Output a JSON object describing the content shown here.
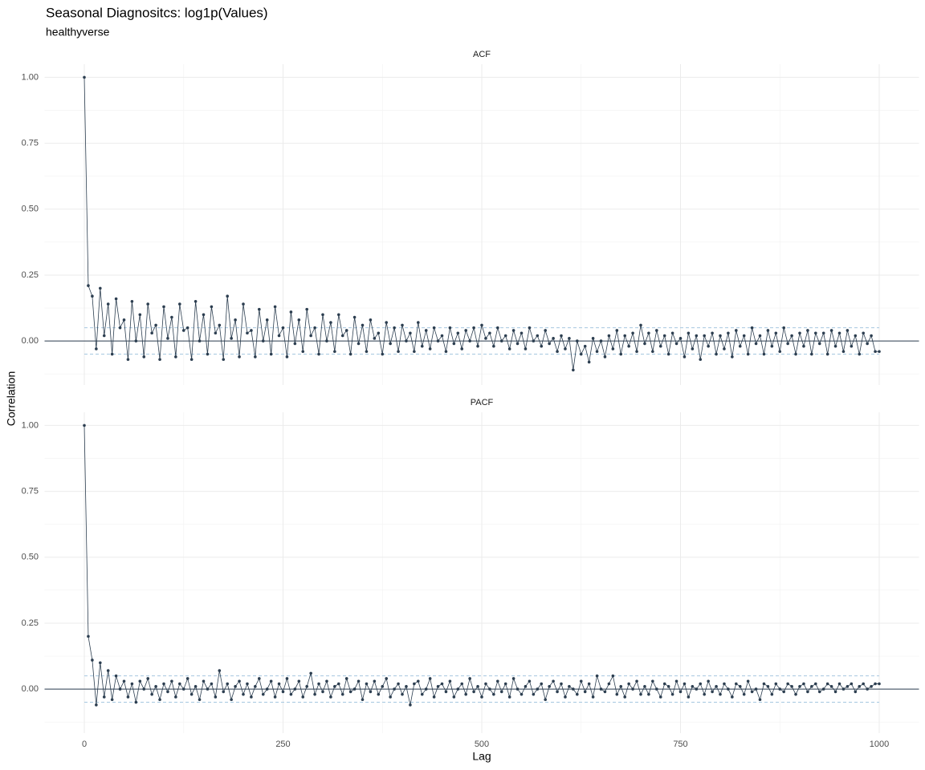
{
  "header": {
    "title": "Seasonal Diagnositcs: log1p(Values)",
    "subtitle": "healthyverse",
    "x_label": "Lag",
    "y_label": "Correlation"
  },
  "chart_data": [
    {
      "type": "line",
      "title": "ACF",
      "color": "#2c3e50",
      "band_color": "#a6c8e0",
      "confidence_band": [
        -0.05,
        0.05
      ],
      "xlim": [
        -50,
        1050
      ],
      "ylim": [
        -0.167,
        1.05
      ],
      "xticks": [
        0,
        250,
        500,
        750,
        1000
      ],
      "minor_xticks": [
        125,
        375,
        625,
        875
      ],
      "yticks": [
        {
          "value": 0,
          "label": "0.00"
        },
        {
          "value": 0.25,
          "label": "0.25"
        },
        {
          "value": 0.5,
          "label": "0.50"
        },
        {
          "value": 0.75,
          "label": "0.75"
        },
        {
          "value": 1,
          "label": "1.00"
        }
      ],
      "minor_yticks": [
        -0.125,
        0.125,
        0.375,
        0.625,
        0.875
      ],
      "x": [
        0,
        5,
        10,
        15,
        20,
        25,
        30,
        35,
        40,
        45,
        50,
        55,
        60,
        65,
        70,
        75,
        80,
        85,
        90,
        95,
        100,
        105,
        110,
        115,
        120,
        125,
        130,
        135,
        140,
        145,
        150,
        155,
        160,
        165,
        170,
        175,
        180,
        185,
        190,
        195,
        200,
        205,
        210,
        215,
        220,
        225,
        230,
        235,
        240,
        245,
        250,
        255,
        260,
        265,
        270,
        275,
        280,
        285,
        290,
        295,
        300,
        305,
        310,
        315,
        320,
        325,
        330,
        335,
        340,
        345,
        350,
        355,
        360,
        365,
        370,
        375,
        380,
        385,
        390,
        395,
        400,
        405,
        410,
        415,
        420,
        425,
        430,
        435,
        440,
        445,
        450,
        455,
        460,
        465,
        470,
        475,
        480,
        485,
        490,
        495,
        500,
        505,
        510,
        515,
        520,
        525,
        530,
        535,
        540,
        545,
        550,
        555,
        560,
        565,
        570,
        575,
        580,
        585,
        590,
        595,
        600,
        605,
        610,
        615,
        620,
        625,
        630,
        635,
        640,
        645,
        650,
        655,
        660,
        665,
        670,
        675,
        680,
        685,
        690,
        695,
        700,
        705,
        710,
        715,
        720,
        725,
        730,
        735,
        740,
        745,
        750,
        755,
        760,
        765,
        770,
        775,
        780,
        785,
        790,
        795,
        800,
        805,
        810,
        815,
        820,
        825,
        830,
        835,
        840,
        845,
        850,
        855,
        860,
        865,
        870,
        875,
        880,
        885,
        890,
        895,
        900,
        905,
        910,
        915,
        920,
        925,
        930,
        935,
        940,
        945,
        950,
        955,
        960,
        965,
        970,
        975,
        980,
        985,
        990,
        995,
        1000
      ],
      "values": [
        1.0,
        0.21,
        0.17,
        -0.03,
        0.2,
        0.02,
        0.14,
        -0.05,
        0.16,
        0.05,
        0.08,
        -0.07,
        0.15,
        0.0,
        0.1,
        -0.06,
        0.14,
        0.03,
        0.06,
        -0.07,
        0.13,
        0.01,
        0.09,
        -0.06,
        0.14,
        0.04,
        0.05,
        -0.07,
        0.15,
        0.0,
        0.1,
        -0.05,
        0.13,
        0.03,
        0.06,
        -0.07,
        0.17,
        0.01,
        0.08,
        -0.06,
        0.14,
        0.03,
        0.04,
        -0.06,
        0.12,
        0.0,
        0.08,
        -0.05,
        0.13,
        0.02,
        0.05,
        -0.06,
        0.11,
        -0.01,
        0.08,
        -0.04,
        0.12,
        0.02,
        0.05,
        -0.05,
        0.1,
        0.0,
        0.07,
        -0.04,
        0.1,
        0.02,
        0.04,
        -0.05,
        0.09,
        -0.01,
        0.06,
        -0.04,
        0.08,
        0.01,
        0.03,
        -0.05,
        0.07,
        -0.01,
        0.05,
        -0.04,
        0.06,
        0.0,
        0.03,
        -0.04,
        0.07,
        -0.02,
        0.04,
        -0.03,
        0.05,
        0.0,
        0.02,
        -0.04,
        0.05,
        -0.01,
        0.03,
        -0.03,
        0.04,
        0.0,
        0.05,
        -0.02,
        0.06,
        0.01,
        0.03,
        -0.02,
        0.05,
        0.0,
        0.02,
        -0.03,
        0.04,
        -0.01,
        0.03,
        -0.03,
        0.05,
        0.0,
        0.02,
        -0.02,
        0.04,
        -0.01,
        0.01,
        -0.04,
        0.02,
        -0.03,
        0.01,
        -0.11,
        0.0,
        -0.05,
        -0.02,
        -0.08,
        0.01,
        -0.04,
        0.0,
        -0.06,
        0.02,
        -0.03,
        0.04,
        -0.05,
        0.02,
        -0.02,
        0.03,
        -0.04,
        0.06,
        -0.01,
        0.03,
        -0.04,
        0.04,
        -0.02,
        0.02,
        -0.05,
        0.03,
        -0.01,
        0.01,
        -0.06,
        0.03,
        -0.03,
        0.02,
        -0.07,
        0.02,
        -0.02,
        0.03,
        -0.05,
        0.02,
        -0.03,
        0.03,
        -0.06,
        0.04,
        -0.02,
        0.02,
        -0.05,
        0.05,
        -0.01,
        0.02,
        -0.05,
        0.04,
        -0.02,
        0.03,
        -0.04,
        0.05,
        -0.01,
        0.02,
        -0.05,
        0.03,
        -0.02,
        0.04,
        -0.05,
        0.03,
        -0.01,
        0.03,
        -0.05,
        0.04,
        -0.02,
        0.03,
        -0.04,
        0.04,
        -0.02,
        0.02,
        -0.05,
        0.03,
        -0.01,
        0.02,
        -0.04,
        -0.04
      ]
    },
    {
      "type": "line",
      "title": "PACF",
      "color": "#2c3e50",
      "band_color": "#a6c8e0",
      "confidence_band": [
        -0.05,
        0.05
      ],
      "xlim": [
        -50,
        1050
      ],
      "ylim": [
        -0.167,
        1.05
      ],
      "xticks": [
        0,
        250,
        500,
        750,
        1000
      ],
      "minor_xticks": [
        125,
        375,
        625,
        875
      ],
      "yticks": [
        {
          "value": 0,
          "label": "0.00"
        },
        {
          "value": 0.25,
          "label": "0.25"
        },
        {
          "value": 0.5,
          "label": "0.50"
        },
        {
          "value": 0.75,
          "label": "0.75"
        },
        {
          "value": 1,
          "label": "1.00"
        }
      ],
      "minor_yticks": [
        -0.125,
        0.125,
        0.375,
        0.625,
        0.875
      ],
      "x": [
        0,
        5,
        10,
        15,
        20,
        25,
        30,
        35,
        40,
        45,
        50,
        55,
        60,
        65,
        70,
        75,
        80,
        85,
        90,
        95,
        100,
        105,
        110,
        115,
        120,
        125,
        130,
        135,
        140,
        145,
        150,
        155,
        160,
        165,
        170,
        175,
        180,
        185,
        190,
        195,
        200,
        205,
        210,
        215,
        220,
        225,
        230,
        235,
        240,
        245,
        250,
        255,
        260,
        265,
        270,
        275,
        280,
        285,
        290,
        295,
        300,
        305,
        310,
        315,
        320,
        325,
        330,
        335,
        340,
        345,
        350,
        355,
        360,
        365,
        370,
        375,
        380,
        385,
        390,
        395,
        400,
        405,
        410,
        415,
        420,
        425,
        430,
        435,
        440,
        445,
        450,
        455,
        460,
        465,
        470,
        475,
        480,
        485,
        490,
        495,
        500,
        505,
        510,
        515,
        520,
        525,
        530,
        535,
        540,
        545,
        550,
        555,
        560,
        565,
        570,
        575,
        580,
        585,
        590,
        595,
        600,
        605,
        610,
        615,
        620,
        625,
        630,
        635,
        640,
        645,
        650,
        655,
        660,
        665,
        670,
        675,
        680,
        685,
        690,
        695,
        700,
        705,
        710,
        715,
        720,
        725,
        730,
        735,
        740,
        745,
        750,
        755,
        760,
        765,
        770,
        775,
        780,
        785,
        790,
        795,
        800,
        805,
        810,
        815,
        820,
        825,
        830,
        835,
        840,
        845,
        850,
        855,
        860,
        865,
        870,
        875,
        880,
        885,
        890,
        895,
        900,
        905,
        910,
        915,
        920,
        925,
        930,
        935,
        940,
        945,
        950,
        955,
        960,
        965,
        970,
        975,
        980,
        985,
        990,
        995,
        1000
      ],
      "values": [
        1.0,
        0.2,
        0.11,
        -0.06,
        0.1,
        -0.03,
        0.07,
        -0.04,
        0.05,
        0.0,
        0.03,
        -0.03,
        0.02,
        -0.05,
        0.03,
        0.0,
        0.04,
        -0.02,
        0.01,
        -0.04,
        0.02,
        -0.01,
        0.03,
        -0.03,
        0.02,
        0.0,
        0.04,
        -0.02,
        0.01,
        -0.04,
        0.03,
        0.0,
        0.02,
        -0.03,
        0.07,
        -0.01,
        0.02,
        -0.04,
        0.01,
        0.03,
        -0.02,
        0.02,
        -0.03,
        0.01,
        0.04,
        -0.02,
        0.0,
        0.03,
        -0.03,
        0.02,
        -0.01,
        0.04,
        -0.02,
        0.0,
        0.03,
        -0.03,
        0.01,
        0.06,
        -0.02,
        0.02,
        -0.01,
        0.03,
        -0.03,
        0.01,
        0.02,
        -0.02,
        0.04,
        -0.01,
        0.0,
        0.03,
        -0.04,
        0.02,
        -0.01,
        0.03,
        -0.02,
        0.01,
        0.04,
        -0.03,
        0.0,
        0.02,
        -0.02,
        0.01,
        -0.06,
        0.02,
        0.03,
        -0.02,
        0.0,
        0.04,
        -0.03,
        0.01,
        0.02,
        -0.01,
        0.03,
        -0.03,
        0.0,
        0.02,
        -0.02,
        0.04,
        -0.01,
        0.01,
        -0.03,
        0.02,
        0.0,
        -0.02,
        0.03,
        -0.01,
        0.02,
        -0.03,
        0.04,
        0.0,
        -0.02,
        0.01,
        0.03,
        -0.02,
        0.0,
        0.02,
        -0.04,
        0.01,
        0.03,
        -0.01,
        0.02,
        -0.03,
        0.01,
        0.0,
        -0.02,
        0.03,
        -0.01,
        0.02,
        -0.03,
        0.05,
        0.0,
        -0.01,
        0.02,
        0.05,
        -0.02,
        0.01,
        -0.03,
        0.02,
        0.0,
        0.03,
        -0.02,
        0.01,
        -0.02,
        0.03,
        0.0,
        -0.03,
        0.02,
        0.01,
        -0.02,
        0.03,
        -0.01,
        0.02,
        -0.03,
        0.01,
        0.0,
        0.02,
        -0.02,
        0.03,
        -0.01,
        0.01,
        -0.02,
        0.02,
        0.0,
        -0.03,
        0.02,
        0.01,
        -0.02,
        0.03,
        -0.01,
        0.0,
        -0.04,
        0.02,
        0.01,
        -0.02,
        0.02,
        0.0,
        -0.01,
        0.02,
        0.01,
        -0.02,
        0.01,
        0.02,
        -0.01,
        0.01,
        0.02,
        -0.01,
        0.0,
        0.02,
        0.01,
        -0.01,
        0.02,
        0.0,
        0.01,
        0.02,
        -0.01,
        0.01,
        0.02,
        0.0,
        0.01,
        0.02,
        0.02
      ]
    }
  ]
}
